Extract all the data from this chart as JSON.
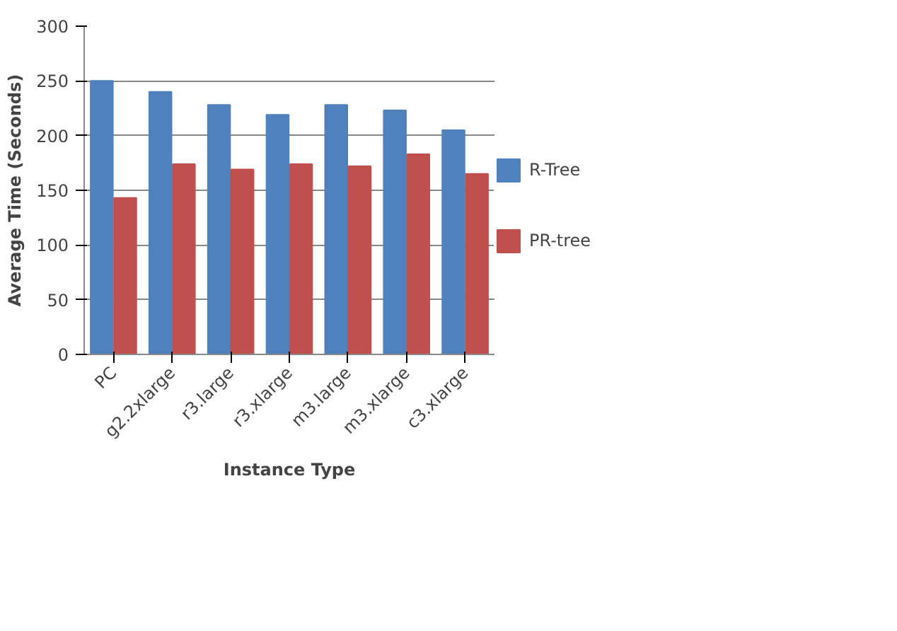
{
  "chart_data": {
    "type": "bar",
    "xlabel": "Instance Type",
    "ylabel": "Average Time (Seconds)",
    "categories": [
      "PC",
      "g2.2xlarge",
      "r3.large",
      "r3.xlarge",
      "m3.large",
      "m3.xlarge",
      "c3.xlarge"
    ],
    "series": [
      {
        "name": "R-Tree",
        "color": "#4f81bd",
        "values": [
          250,
          240,
          228,
          219,
          228,
          223,
          205
        ]
      },
      {
        "name": "PR-tree",
        "color": "#c0504d",
        "values": [
          143,
          174,
          169,
          174,
          172,
          183,
          165
        ]
      }
    ],
    "ylim": [
      0,
      300
    ],
    "yticks": [
      0,
      50,
      100,
      150,
      200,
      250,
      300
    ],
    "grid": "y",
    "legend": "right"
  }
}
